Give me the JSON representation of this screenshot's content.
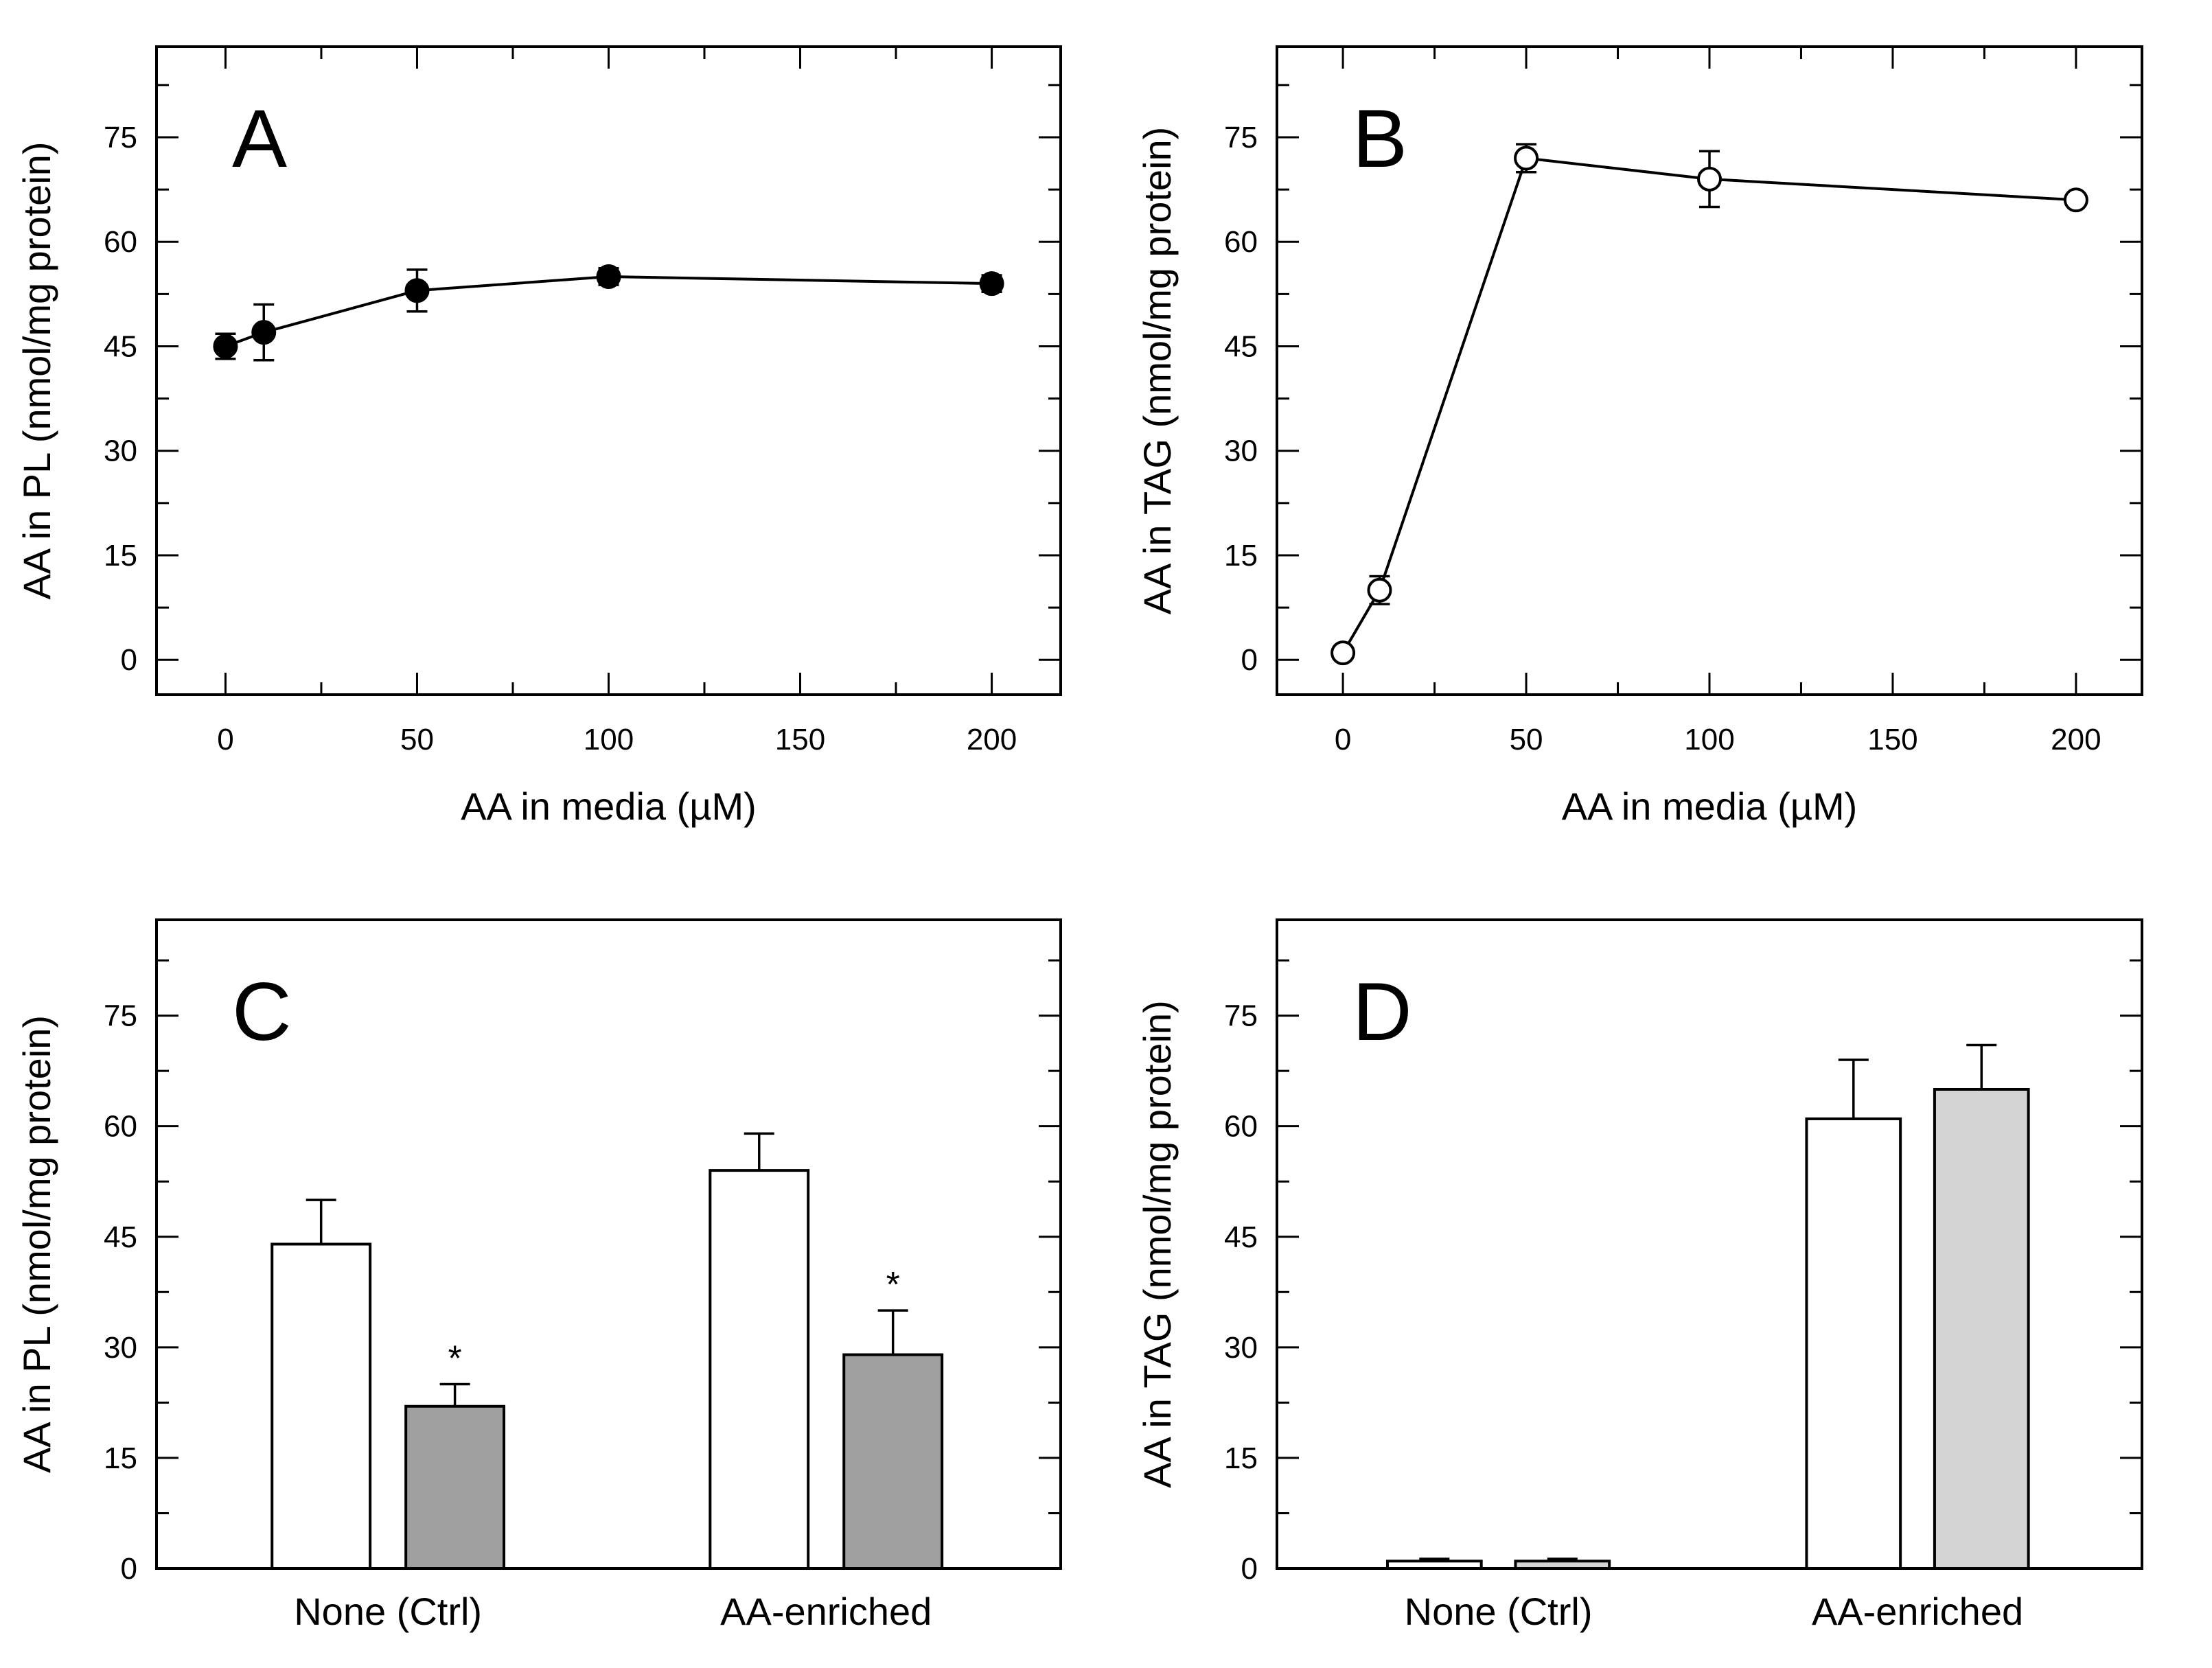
{
  "colors": {
    "axis": "#000000",
    "open_fill": "#ffffff",
    "bar_dark": "#a0a0a0",
    "bar_light": "#d4d4d4"
  },
  "chart_data": [
    {
      "id": "A",
      "type": "line",
      "panel_label": "A",
      "xlabel": "AA in media (µM)",
      "ylabel": "AA in PL (nmol/mg protein)",
      "xlim": [
        -18,
        218
      ],
      "ylim": [
        -5,
        88
      ],
      "xticks": [
        0,
        50,
        100,
        150,
        200
      ],
      "yticks": [
        0,
        15,
        30,
        45,
        60,
        75
      ],
      "marker": "filled-circle",
      "x": [
        0,
        10,
        50,
        100,
        200
      ],
      "y": [
        45,
        47,
        53,
        55,
        54
      ],
      "err": [
        1.8,
        4,
        3,
        1.2,
        1.2
      ]
    },
    {
      "id": "B",
      "type": "line",
      "panel_label": "B",
      "xlabel": "AA in media (µM)",
      "ylabel": "AA in TAG (nmol/mg protein)",
      "xlim": [
        -18,
        218
      ],
      "ylim": [
        -5,
        88
      ],
      "xticks": [
        0,
        50,
        100,
        150,
        200
      ],
      "yticks": [
        0,
        15,
        30,
        45,
        60,
        75
      ],
      "marker": "open-circle",
      "x": [
        0,
        10,
        50,
        100,
        200
      ],
      "y": [
        1,
        10,
        72,
        69,
        66
      ],
      "err": [
        0.5,
        2,
        2,
        4,
        0.8
      ]
    },
    {
      "id": "C",
      "type": "bar",
      "panel_label": "C",
      "xlabel": "",
      "ylabel": "AA in PL (nmol/mg protein)",
      "ylim": [
        0,
        88
      ],
      "yticks": [
        0,
        15,
        30,
        45,
        60,
        75
      ],
      "categories": [
        "None (Ctrl)",
        "AA-enriched"
      ],
      "series": [
        {
          "fill": "#ffffff",
          "values": [
            44,
            54
          ],
          "err": [
            6,
            5
          ],
          "marks": [
            "",
            ""
          ]
        },
        {
          "fill": "#a0a0a0",
          "values": [
            22,
            29
          ],
          "err": [
            3,
            6
          ],
          "marks": [
            "*",
            "*"
          ]
        }
      ]
    },
    {
      "id": "D",
      "type": "bar",
      "panel_label": "D",
      "xlabel": "",
      "ylabel": "AA in TAG (nmol/mg protein)",
      "ylim": [
        0,
        88
      ],
      "yticks": [
        0,
        15,
        30,
        45,
        60,
        75
      ],
      "categories": [
        "None (Ctrl)",
        "AA-enriched"
      ],
      "series": [
        {
          "fill": "#ffffff",
          "values": [
            1,
            61
          ],
          "err": [
            0.3,
            8
          ],
          "marks": [
            "",
            ""
          ]
        },
        {
          "fill": "#d4d4d4",
          "values": [
            1,
            65
          ],
          "err": [
            0.3,
            6
          ],
          "marks": [
            "",
            ""
          ]
        }
      ]
    }
  ]
}
